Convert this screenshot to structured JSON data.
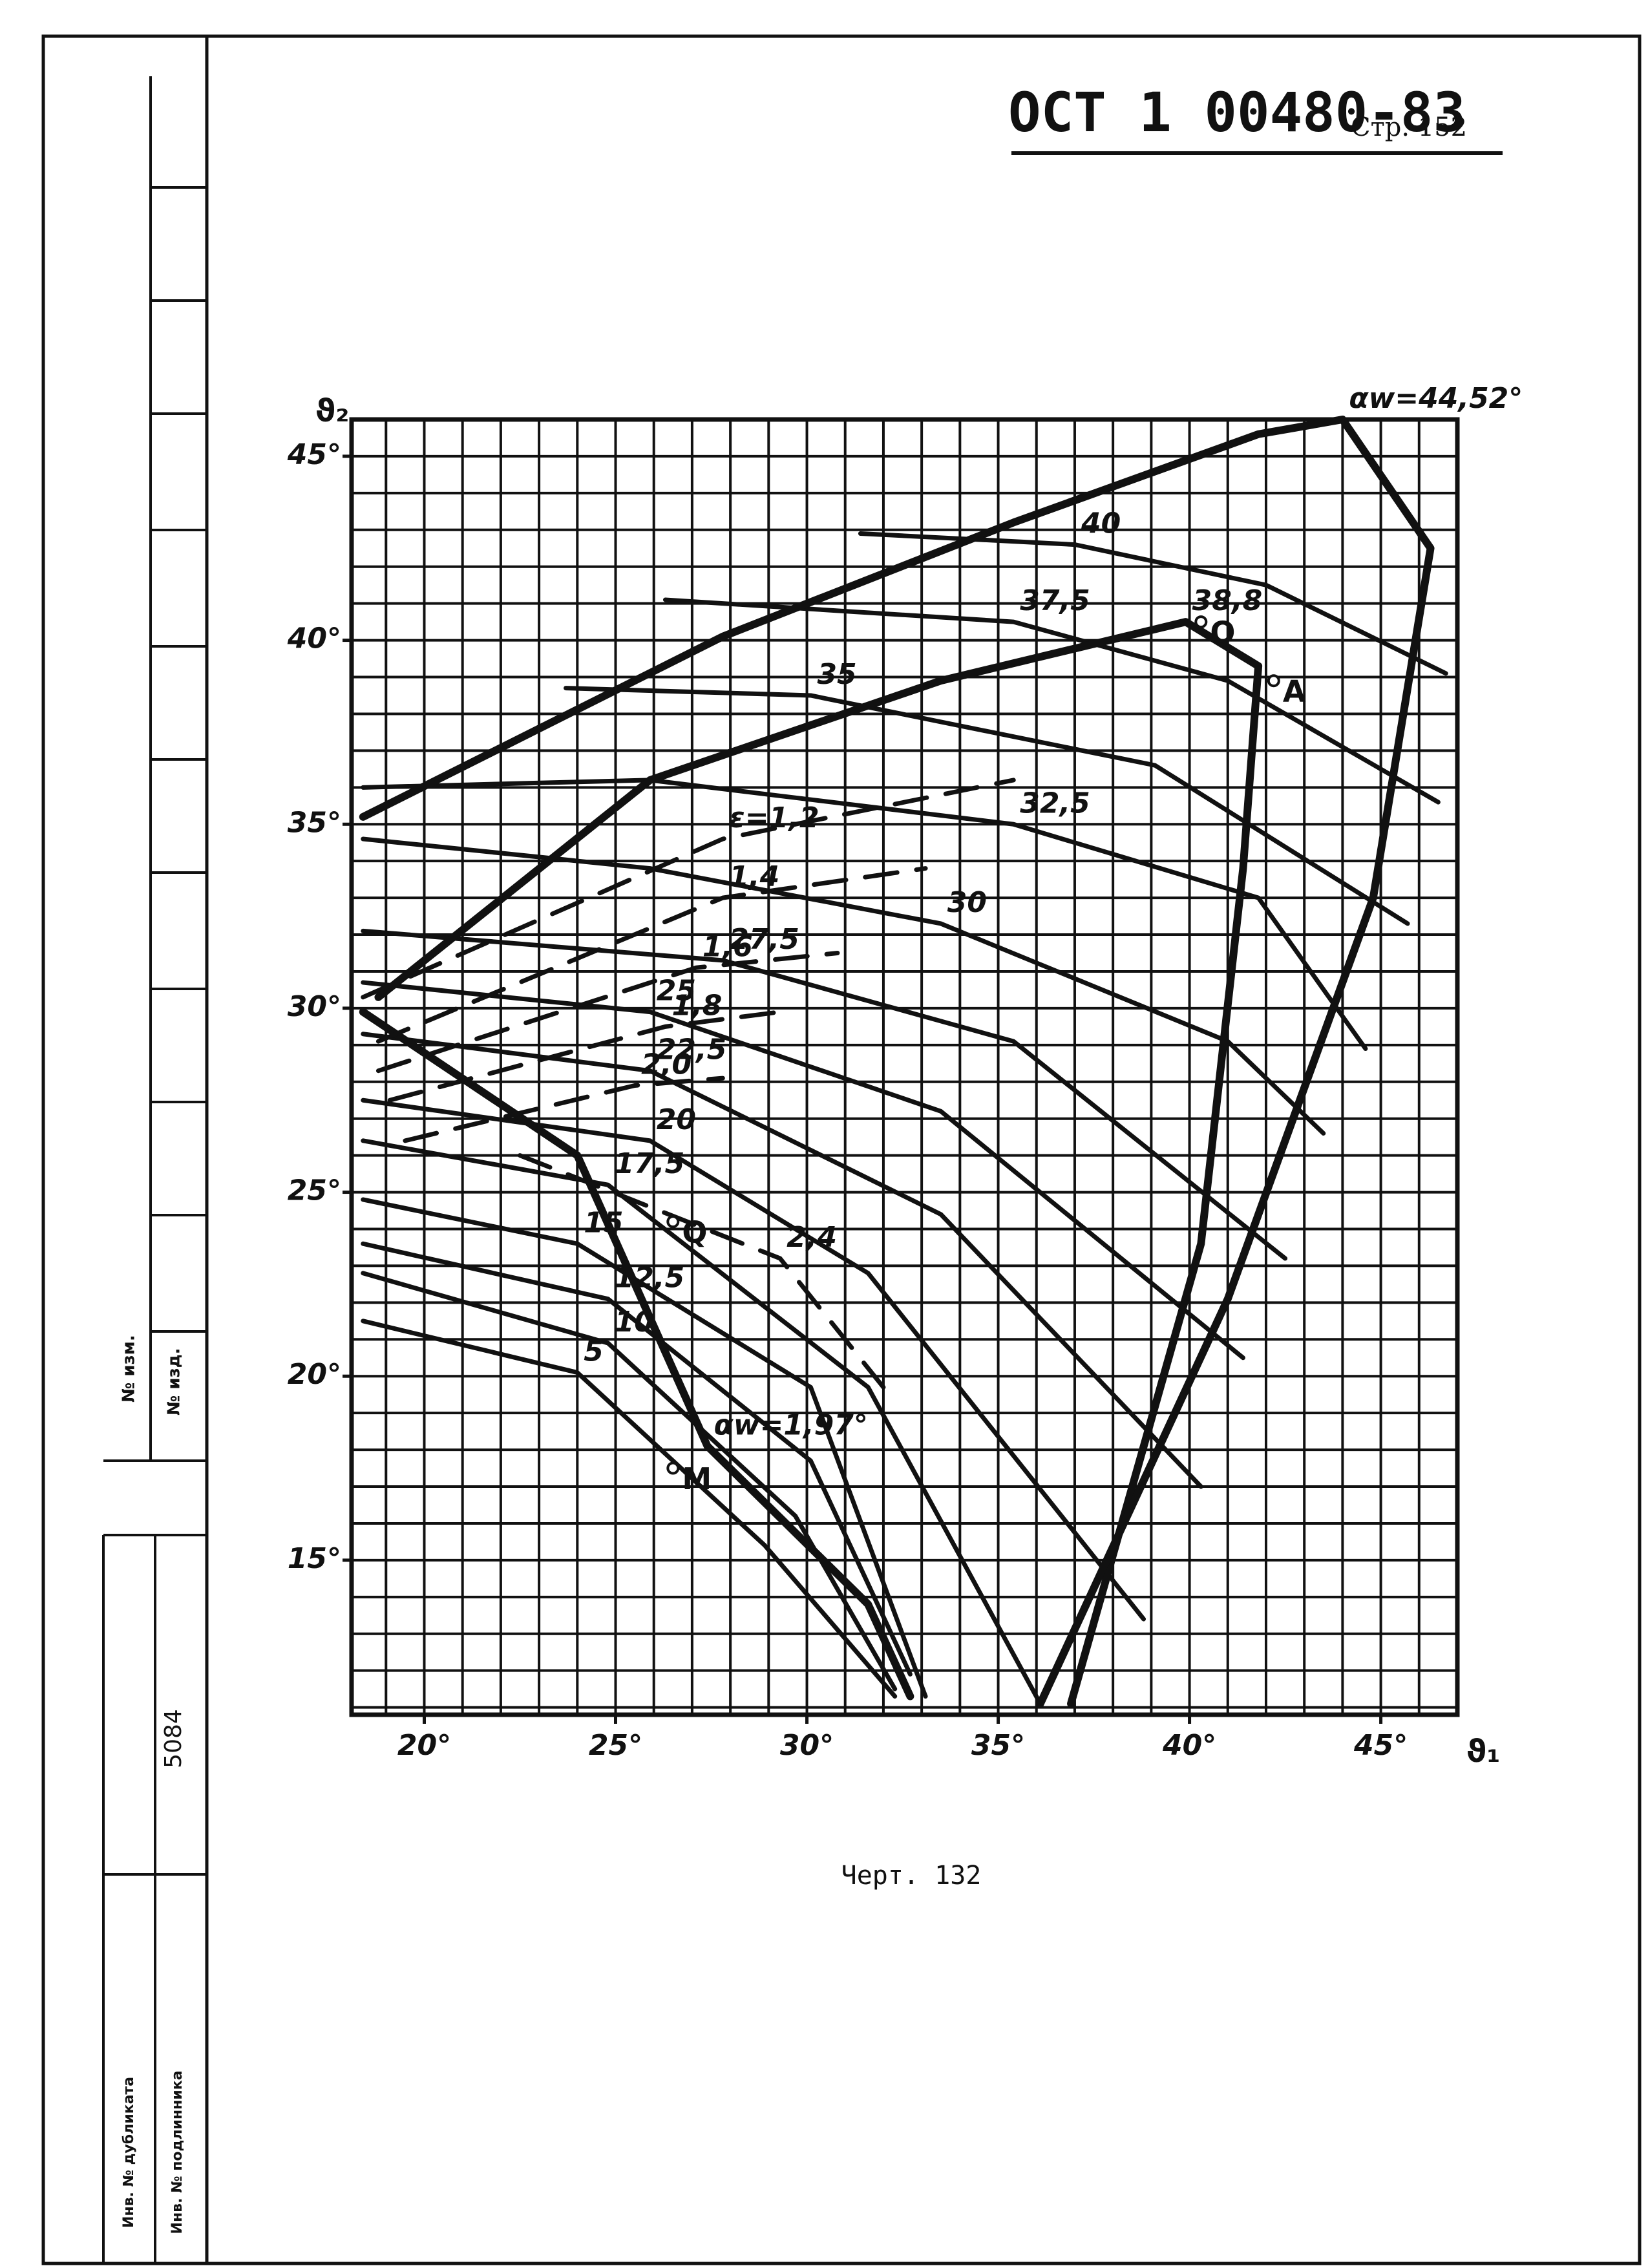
{
  "header": {
    "standard": "ОСТ 1 00480-83",
    "page": "Стр. 152"
  },
  "stamp": {
    "change_no": "№ изм.",
    "doc_no": "№ изд.",
    "inventory": "5084",
    "duplicate": "Инв. № дубликата",
    "original": "Инв. № подлинника"
  },
  "caption": "Черт. 132",
  "chart_data": {
    "type": "line",
    "x_label": "ϑ₁",
    "y_label": "ϑ₂",
    "xlim": [
      18.1,
      47
    ],
    "ylim": [
      10.8,
      46
    ],
    "xticks": [
      {
        "value": 20,
        "label": "20°"
      },
      {
        "value": 25,
        "label": "25°"
      },
      {
        "value": 30,
        "label": "30°"
      },
      {
        "value": 35,
        "label": "35°"
      },
      {
        "value": 40,
        "label": "40°"
      },
      {
        "value": 45,
        "label": "45°"
      }
    ],
    "yticks": [
      {
        "value": 15,
        "label": "15°"
      },
      {
        "value": 20,
        "label": "20°"
      },
      {
        "value": 25,
        "label": "25°"
      },
      {
        "value": 30,
        "label": "30°"
      },
      {
        "value": 35,
        "label": "35°"
      },
      {
        "value": 40,
        "label": "40°"
      },
      {
        "value": 45,
        "label": "45°"
      }
    ],
    "grid": true,
    "series": [
      {
        "name": "40",
        "color": "#111",
        "style": "solid",
        "x": [
          31.4,
          37,
          42,
          46.7
        ],
        "values": [
          42.9,
          42.6,
          41.5,
          39.1
        ]
      },
      {
        "name": "37,5",
        "color": "#111",
        "style": "solid",
        "x": [
          26.3,
          35.4,
          41,
          46.5
        ],
        "values": [
          41.1,
          40.5,
          38.9,
          35.6
        ]
      },
      {
        "name": "35",
        "color": "#111",
        "style": "solid",
        "x": [
          23.7,
          30.1,
          39.1,
          45.7
        ],
        "values": [
          38.7,
          38.5,
          36.6,
          32.3
        ]
      },
      {
        "name": "32,5",
        "color": "#111",
        "style": "solid",
        "x": [
          18.4,
          25.9,
          35.4,
          41.8,
          44.6
        ],
        "values": [
          36,
          36.2,
          35,
          33,
          28.9
        ]
      },
      {
        "name": "30",
        "color": "#111",
        "style": "solid",
        "x": [
          18.4,
          25.9,
          33.5,
          41,
          43.5
        ],
        "values": [
          34.6,
          33.8,
          32.3,
          29.1,
          26.6
        ]
      },
      {
        "name": "27,5",
        "color": "#111",
        "style": "solid",
        "x": [
          18.4,
          27.8,
          35.4,
          42.5
        ],
        "values": [
          32.1,
          31.3,
          29.1,
          23.2
        ]
      },
      {
        "name": "25",
        "color": "#111",
        "style": "solid",
        "x": [
          18.4,
          25.9,
          33.5,
          41.4
        ],
        "values": [
          30.7,
          29.9,
          27.2,
          20.5
        ]
      },
      {
        "name": "22,5",
        "color": "#111",
        "style": "solid",
        "x": [
          18.4,
          25.9,
          33.5,
          40.3
        ],
        "values": [
          29.3,
          28.3,
          24.4,
          17
        ]
      },
      {
        "name": "20",
        "color": "#111",
        "style": "solid",
        "x": [
          18.4,
          25.9,
          31.6,
          38.8
        ],
        "values": [
          27.5,
          26.4,
          22.8,
          13.4
        ]
      },
      {
        "name": "17,5",
        "color": "#111",
        "style": "solid",
        "x": [
          18.4,
          24.8,
          31.6,
          36.1
        ],
        "values": [
          26.4,
          25.2,
          19.7,
          11.1
        ]
      },
      {
        "name": "15",
        "color": "#111",
        "style": "solid",
        "x": [
          18.4,
          24,
          30.1,
          33.1
        ],
        "values": [
          24.8,
          23.6,
          19.7,
          11.3
        ]
      },
      {
        "name": "12,5",
        "color": "#111",
        "style": "solid",
        "x": [
          18.4,
          24.8,
          30.1,
          32.7
        ],
        "values": [
          23.6,
          22.1,
          17.7,
          11.9
        ]
      },
      {
        "name": "10",
        "color": "#111",
        "style": "solid",
        "x": [
          18.4,
          24.8,
          29.7,
          32.3
        ],
        "values": [
          22.8,
          20.9,
          16.2,
          11.5
        ]
      },
      {
        "name": "5",
        "color": "#111",
        "style": "solid",
        "x": [
          18.4,
          24,
          28.9,
          32.3
        ],
        "values": [
          21.5,
          20.1,
          15.4,
          11.3
        ]
      },
      {
        "name": "38,8",
        "color": "#111",
        "style": "bold",
        "x": [
          18.8,
          25.9,
          33.5,
          39.9,
          41.8,
          41.4,
          40.3,
          36.9
        ],
        "values": [
          30.3,
          36.2,
          38.9,
          40.5,
          39.3,
          33.8,
          23.6,
          11.1
        ]
      },
      {
        "name": "αw=44,52°",
        "color": "#111",
        "style": "bold",
        "x": [
          18.4,
          27.8,
          35.4,
          41.8,
          44,
          46.3,
          44.8,
          41,
          36.1
        ],
        "values": [
          35.2,
          40.1,
          43.2,
          45.6,
          46,
          42.5,
          33,
          22.1,
          11.1
        ]
      },
      {
        "name": "αw=1,97°",
        "color": "#111",
        "style": "bold",
        "x": [
          18.4,
          24,
          27.4,
          31.6,
          32.7
        ],
        "values": [
          29.9,
          26,
          18.1,
          13.8,
          11.3
        ]
      },
      {
        "name": "ε=1,2",
        "color": "#111",
        "style": "dashed",
        "x": [
          18.4,
          27.8,
          35.4
        ],
        "values": [
          30.3,
          34.6,
          36.2
        ]
      },
      {
        "name": "1,4",
        "color": "#111",
        "style": "dashed",
        "x": [
          18.8,
          27.8,
          33.1
        ],
        "values": [
          29.1,
          33,
          33.8
        ]
      },
      {
        "name": "1,6",
        "color": "#111",
        "style": "dashed",
        "x": [
          18.8,
          27.1,
          30.8
        ],
        "values": [
          28.3,
          31.1,
          31.5
        ]
      },
      {
        "name": "1,8",
        "color": "#111",
        "style": "dashed",
        "x": [
          19.1,
          26.3,
          29.3
        ],
        "values": [
          27.5,
          29.5,
          29.9
        ]
      },
      {
        "name": "2,0",
        "color": "#111",
        "style": "dashed",
        "x": [
          19.5,
          25.5,
          27.8
        ],
        "values": [
          26.4,
          27.9,
          28.1
        ]
      },
      {
        "name": "2,4",
        "color": "#111",
        "style": "dashed",
        "x": [
          22.5,
          29.3,
          32
        ],
        "values": [
          26,
          23.2,
          19.7
        ]
      }
    ],
    "annotations": [
      {
        "text": "Q",
        "x": 40.3,
        "y": 40.5
      },
      {
        "text": "A",
        "x": 42.2,
        "y": 38.9
      },
      {
        "text": "Q",
        "x": 26.5,
        "y": 24.2
      },
      {
        "text": "M",
        "x": 26.5,
        "y": 17.5
      }
    ]
  }
}
